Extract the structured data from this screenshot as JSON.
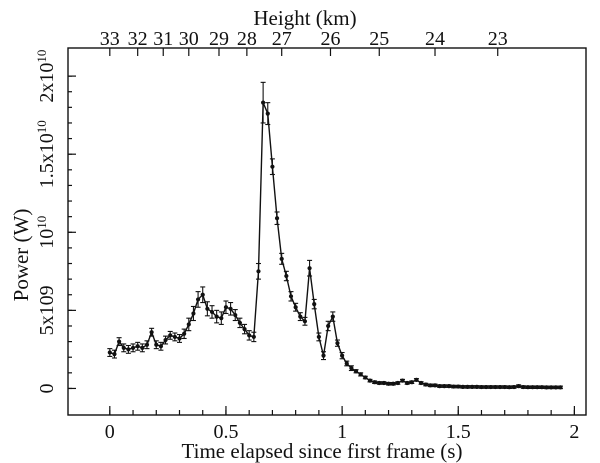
{
  "chart_data": {
    "type": "line",
    "xlabel": "Time elapsed since first frame (s)",
    "ylabel": "Power (W)",
    "top_axis_label": "Height (km)",
    "xlim": [
      -0.18,
      2.05
    ],
    "ylim": [
      -1700000000.0,
      21800000000.0
    ],
    "x_ticks": [
      0,
      0.5,
      1,
      1.5,
      2
    ],
    "x_tick_labels": [
      "0",
      "0.5",
      "1",
      "1.5",
      "2"
    ],
    "y_ticks": [
      0,
      5000000000,
      10000000000,
      15000000000,
      20000000000
    ],
    "y_tick_labels": [
      {
        "mantissa": "0",
        "exponent": ""
      },
      {
        "mantissa": "5x109",
        "exponent": ""
      },
      {
        "mantissa": "10",
        "exponent": "10"
      },
      {
        "mantissa": "1.5x10",
        "exponent": "10"
      },
      {
        "mantissa": "2x10",
        "exponent": "10"
      }
    ],
    "top_ticks": [
      {
        "x": 0.0,
        "label": "33"
      },
      {
        "x": 0.12,
        "label": "32"
      },
      {
        "x": 0.23,
        "label": "31"
      },
      {
        "x": 0.34,
        "label": "30"
      },
      {
        "x": 0.47,
        "label": "29"
      },
      {
        "x": 0.59,
        "label": "28"
      },
      {
        "x": 0.74,
        "label": "27"
      },
      {
        "x": 0.95,
        "label": "26"
      },
      {
        "x": 1.16,
        "label": "25"
      },
      {
        "x": 1.4,
        "label": "24"
      },
      {
        "x": 1.67,
        "label": "23"
      }
    ],
    "x": [
      0.0,
      0.02,
      0.04,
      0.06,
      0.08,
      0.1,
      0.12,
      0.14,
      0.16,
      0.18,
      0.2,
      0.22,
      0.24,
      0.26,
      0.28,
      0.3,
      0.32,
      0.34,
      0.36,
      0.38,
      0.4,
      0.42,
      0.44,
      0.46,
      0.48,
      0.5,
      0.52,
      0.54,
      0.56,
      0.58,
      0.6,
      0.62,
      0.64,
      0.66,
      0.68,
      0.7,
      0.72,
      0.74,
      0.76,
      0.78,
      0.8,
      0.82,
      0.84,
      0.86,
      0.88,
      0.9,
      0.92,
      0.94,
      0.96,
      0.98,
      1.0,
      1.02,
      1.04,
      1.06,
      1.08,
      1.1,
      1.12,
      1.14,
      1.16,
      1.18,
      1.2,
      1.22,
      1.24,
      1.26,
      1.28,
      1.3,
      1.32,
      1.34,
      1.36,
      1.38,
      1.4,
      1.42,
      1.44,
      1.46,
      1.48,
      1.5,
      1.52,
      1.54,
      1.56,
      1.58,
      1.6,
      1.62,
      1.64,
      1.66,
      1.68,
      1.7,
      1.72,
      1.74,
      1.76,
      1.78,
      1.8,
      1.82,
      1.84,
      1.86,
      1.88,
      1.9,
      1.92,
      1.94
    ],
    "y": [
      2300000000,
      2200000000,
      3000000000,
      2600000000,
      2500000000,
      2600000000,
      2700000000,
      2600000000,
      2800000000,
      3600000000,
      2800000000,
      2700000000,
      3100000000,
      3400000000,
      3300000000,
      3200000000,
      3500000000,
      4100000000,
      4800000000,
      5700000000,
      6000000000,
      5100000000,
      4900000000,
      4600000000,
      4500000000,
      5200000000,
      5100000000,
      4700000000,
      4200000000,
      3800000000,
      3400000000,
      3300000000,
      7500000000,
      18300000000,
      17600000000,
      14200000000,
      10900000000,
      8300000000,
      7200000000,
      5900000000,
      5200000000,
      4600000000,
      4300000000,
      7700000000,
      5400000000,
      3300000000,
      2100000000,
      4000000000,
      4600000000,
      2900000000,
      2100000000,
      1600000000,
      1300000000,
      1100000000,
      900000000,
      700000000,
      500000000,
      400000000,
      350000000,
      350000000,
      300000000,
      300000000,
      350000000,
      500000000,
      350000000,
      400000000,
      550000000,
      350000000,
      250000000,
      200000000,
      200000000,
      150000000,
      150000000,
      150000000,
      120000000,
      120000000,
      100000000,
      100000000,
      100000000,
      100000000,
      90000000,
      90000000,
      90000000,
      90000000,
      90000000,
      90000000,
      80000000,
      90000000,
      150000000,
      90000000,
      80000000,
      80000000,
      80000000,
      80000000,
      70000000,
      70000000,
      70000000,
      70000000
    ],
    "errors": [
      250000000,
      250000000,
      250000000,
      250000000,
      250000000,
      250000000,
      250000000,
      250000000,
      250000000,
      250000000,
      250000000,
      250000000,
      250000000,
      250000000,
      250000000,
      250000000,
      300000000,
      400000000,
      450000000,
      500000000,
      500000000,
      450000000,
      400000000,
      400000000,
      400000000,
      400000000,
      400000000,
      350000000,
      300000000,
      300000000,
      300000000,
      300000000,
      500000000,
      1300000000,
      700000000,
      500000000,
      400000000,
      350000000,
      300000000,
      300000000,
      250000000,
      250000000,
      250000000,
      500000000,
      300000000,
      250000000,
      250000000,
      300000000,
      300000000,
      200000000,
      200000000,
      150000000,
      150000000,
      100000000,
      100000000,
      80000000,
      80000000,
      80000000,
      80000000,
      80000000,
      80000000,
      80000000,
      80000000,
      80000000,
      80000000,
      80000000,
      80000000,
      80000000,
      80000000,
      80000000,
      80000000,
      80000000,
      80000000,
      80000000,
      80000000,
      80000000,
      80000000,
      80000000,
      80000000,
      80000000,
      80000000,
      80000000,
      80000000,
      80000000,
      80000000,
      80000000,
      80000000,
      80000000,
      80000000,
      80000000,
      80000000,
      80000000,
      80000000,
      80000000,
      80000000,
      80000000,
      80000000,
      80000000
    ],
    "colors": {
      "line": "#111111",
      "axis": "#111111",
      "background": "#ffffff"
    },
    "grid": false,
    "legend": "none"
  }
}
